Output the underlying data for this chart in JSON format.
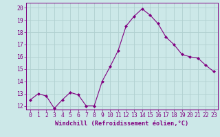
{
  "x": [
    0,
    1,
    2,
    3,
    4,
    5,
    6,
    7,
    8,
    9,
    10,
    11,
    12,
    13,
    14,
    15,
    16,
    17,
    18,
    19,
    20,
    21,
    22,
    23
  ],
  "y": [
    12.5,
    13.0,
    12.8,
    11.8,
    12.5,
    13.1,
    12.9,
    12.0,
    12.0,
    14.0,
    15.2,
    16.5,
    18.5,
    19.3,
    19.9,
    19.4,
    18.7,
    17.6,
    17.0,
    16.2,
    16.0,
    15.9,
    15.3,
    14.8
  ],
  "line_color": "#800080",
  "marker": "D",
  "marker_size": 2,
  "bg_color": "#cce8e8",
  "grid_color": "#b0d0d0",
  "ylabel_ticks": [
    12,
    13,
    14,
    15,
    16,
    17,
    18,
    19,
    20
  ],
  "xlabel": "Windchill (Refroidissement éolien,°C)",
  "ylim": [
    11.7,
    20.4
  ],
  "xlim": [
    -0.5,
    23.5
  ],
  "tick_color": "#800080",
  "label_color": "#800080",
  "font_size": 5.8,
  "xlabel_font_size": 6.2
}
